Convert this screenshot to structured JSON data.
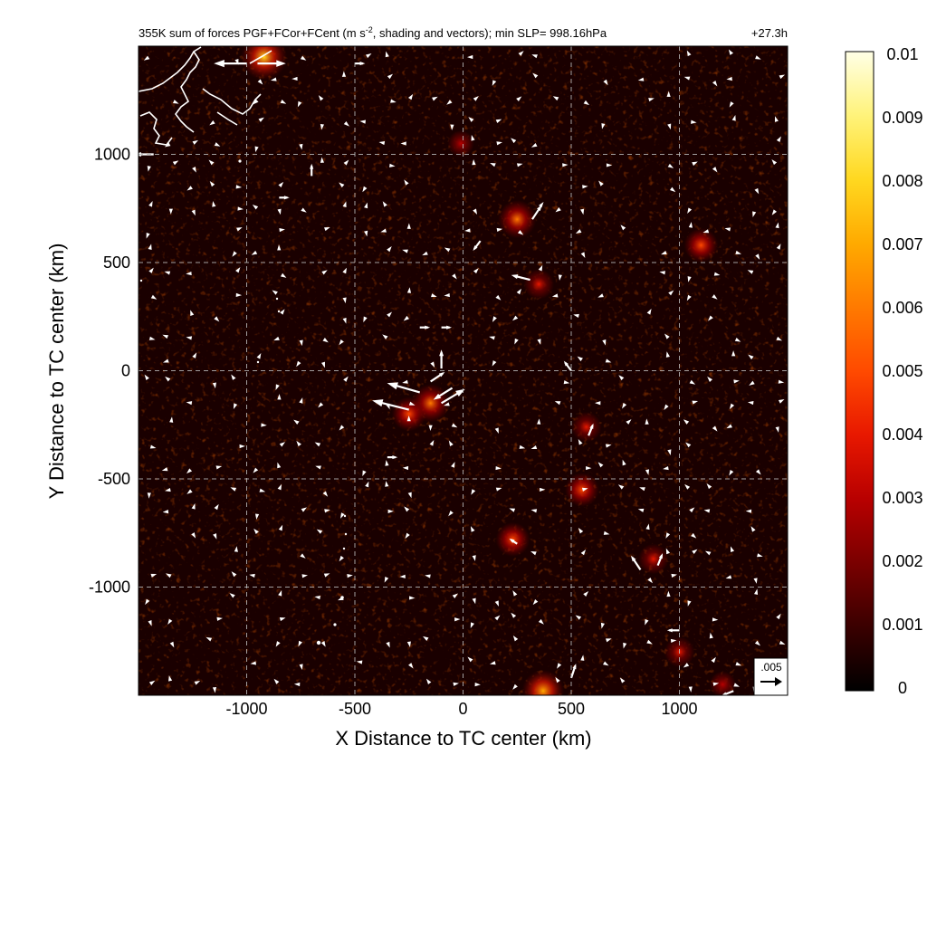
{
  "chart_data": {
    "type": "heatmap",
    "title": "355K sum of forces PGF+FCor+FCent (m s⁻², shading and vectors); min SLP= 998.16hPa",
    "title_parts": {
      "before_sup": "355K sum of forces PGF+FCor+FCent (m s",
      "sup": "-2",
      "after_sup": ", shading and vectors); min SLP= 998.16hPa"
    },
    "forecast_hour": "+27.3h",
    "xlabel": "X Distance to TC center (km)",
    "ylabel": "Y Distance to TC center (km)",
    "xlim": [
      -1500,
      1500
    ],
    "ylim": [
      -1500,
      1500
    ],
    "x_ticks": [
      -1000,
      -500,
      0,
      500,
      1000
    ],
    "x_tick_labels": [
      "-1000",
      "-500",
      "0",
      "500",
      "1000"
    ],
    "y_ticks": [
      -1000,
      -500,
      0,
      500,
      1000
    ],
    "y_tick_labels": [
      "-1000",
      "-500",
      "0",
      "500",
      "1000"
    ],
    "grid": true,
    "colorbar": {
      "min": 0,
      "max": 0.01,
      "ticks": [
        0,
        0.001,
        0.002,
        0.003,
        0.004,
        0.005,
        0.006,
        0.007,
        0.008,
        0.009,
        0.01
      ],
      "tick_labels": [
        "0",
        "0.001",
        "0.002",
        "0.003",
        "0.004",
        "0.005",
        "0.006",
        "0.007",
        "0.008",
        "0.009",
        "0.01"
      ],
      "colors": [
        "#000000",
        "#3a0000",
        "#7a0000",
        "#b80000",
        "#e81800",
        "#ff4a00",
        "#ff7a00",
        "#ffaa00",
        "#ffd820",
        "#fff37a",
        "#ffffe6"
      ]
    },
    "reference_vector": {
      "label": ".005",
      "magnitude": 0.005
    },
    "vector_color": "#ffffff",
    "coastline_color": "#ffffff",
    "hotspots": [
      {
        "x": -150,
        "y": -150,
        "value": 0.006
      },
      {
        "x": -250,
        "y": -200,
        "value": 0.005
      },
      {
        "x": 250,
        "y": 700,
        "value": 0.006
      },
      {
        "x": 350,
        "y": 400,
        "value": 0.004
      },
      {
        "x": 230,
        "y": -780,
        "value": 0.005
      },
      {
        "x": 570,
        "y": -260,
        "value": 0.004
      },
      {
        "x": 550,
        "y": -550,
        "value": 0.005
      },
      {
        "x": 880,
        "y": -870,
        "value": 0.004
      },
      {
        "x": -920,
        "y": 1450,
        "value": 0.008
      },
      {
        "x": 370,
        "y": -1480,
        "value": 0.007
      },
      {
        "x": 1000,
        "y": -1300,
        "value": 0.004
      },
      {
        "x": 1100,
        "y": 580,
        "value": 0.005
      },
      {
        "x": -10,
        "y": 1050,
        "value": 0.003
      },
      {
        "x": 1200,
        "y": -1450,
        "value": 0.003
      }
    ],
    "vectors": [
      {
        "x": -1000,
        "y": 1420,
        "u": -70,
        "v": 0
      },
      {
        "x": -950,
        "y": 1420,
        "u": 60,
        "v": 0
      },
      {
        "x": -500,
        "y": 1420,
        "u": 20,
        "v": 0
      },
      {
        "x": -1430,
        "y": 1000,
        "u": -40,
        "v": 0
      },
      {
        "x": -850,
        "y": 800,
        "u": 20,
        "v": 0
      },
      {
        "x": -700,
        "y": 900,
        "u": 0,
        "v": 25
      },
      {
        "x": 320,
        "y": 700,
        "u": 20,
        "v": 30
      },
      {
        "x": 310,
        "y": 420,
        "u": -40,
        "v": 10
      },
      {
        "x": 80,
        "y": 600,
        "u": -15,
        "v": -20
      },
      {
        "x": -200,
        "y": -100,
        "u": -70,
        "v": 20
      },
      {
        "x": -250,
        "y": -180,
        "u": -80,
        "v": 20
      },
      {
        "x": -100,
        "y": -150,
        "u": 50,
        "v": 30
      },
      {
        "x": -100,
        "y": 10,
        "u": 0,
        "v": 40
      },
      {
        "x": -50,
        "y": -80,
        "u": -40,
        "v": -25
      },
      {
        "x": -150,
        "y": -50,
        "u": 30,
        "v": 20
      },
      {
        "x": -200,
        "y": 200,
        "u": 20,
        "v": 0
      },
      {
        "x": -100,
        "y": 200,
        "u": 20,
        "v": 0
      },
      {
        "x": -350,
        "y": -400,
        "u": 20,
        "v": 0
      },
      {
        "x": 500,
        "y": -1420,
        "u": 10,
        "v": 30
      },
      {
        "x": 820,
        "y": -920,
        "u": -20,
        "v": 30
      },
      {
        "x": 900,
        "y": -900,
        "u": 10,
        "v": 25
      },
      {
        "x": 580,
        "y": -300,
        "u": 10,
        "v": 25
      },
      {
        "x": 500,
        "y": 0,
        "u": -15,
        "v": 20
      },
      {
        "x": 1000,
        "y": -1200,
        "u": -25,
        "v": 0
      },
      {
        "x": 1250,
        "y": -1480,
        "u": -25,
        "v": -10
      },
      {
        "x": 250,
        "y": -800,
        "u": -15,
        "v": 10
      }
    ]
  }
}
